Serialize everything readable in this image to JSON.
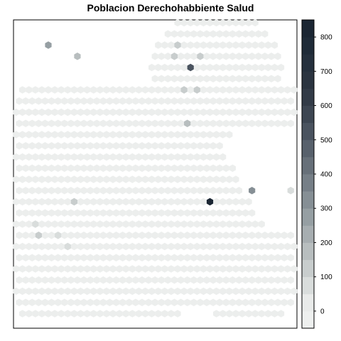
{
  "chart_data": {
    "type": "heatmap",
    "title": "Poblacion Derechohabbiente Salud",
    "legend": {
      "position": "right",
      "ticks": [
        0,
        100,
        200,
        300,
        400,
        500,
        600,
        700,
        800
      ],
      "range": [
        -50,
        850
      ],
      "bins": [
        {
          "from": -50,
          "to": 0,
          "color": "#eef0ef"
        },
        {
          "from": 0,
          "to": 50,
          "color": "#e9ebea"
        },
        {
          "from": 50,
          "to": 100,
          "color": "#d9dddc"
        },
        {
          "from": 100,
          "to": 150,
          "color": "#c8cdcd"
        },
        {
          "from": 150,
          "to": 200,
          "color": "#b8bebf"
        },
        {
          "from": 200,
          "to": 250,
          "color": "#a7aeb1"
        },
        {
          "from": 250,
          "to": 300,
          "color": "#969fa3"
        },
        {
          "from": 300,
          "to": 350,
          "color": "#868f95"
        },
        {
          "from": 350,
          "to": 400,
          "color": "#767f87"
        },
        {
          "from": 400,
          "to": 450,
          "color": "#677079"
        },
        {
          "from": 450,
          "to": 500,
          "color": "#58616c"
        },
        {
          "from": 500,
          "to": 550,
          "color": "#4a535f"
        },
        {
          "from": 550,
          "to": 600,
          "color": "#3d4652"
        },
        {
          "from": 600,
          "to": 650,
          "color": "#323b47"
        },
        {
          "from": 650,
          "to": 700,
          "color": "#2b3440"
        },
        {
          "from": 700,
          "to": 750,
          "color": "#25303d"
        },
        {
          "from": 750,
          "to": 800,
          "color": "#1f2b38"
        },
        {
          "from": 800,
          "to": 850,
          "color": "#1b2633"
        }
      ]
    },
    "base_color": "#eceeed",
    "highlight_hexes": [
      {
        "col": 5,
        "row": 2,
        "value": 280
      },
      {
        "col": 9,
        "row": 3,
        "value": 160
      },
      {
        "col": 25,
        "row": 2,
        "value": 110
      },
      {
        "col": 24,
        "row": 3,
        "value": 120
      },
      {
        "col": 28,
        "row": 3,
        "value": 100
      },
      {
        "col": 27,
        "row": 4,
        "value": 500
      },
      {
        "col": 26,
        "row": 6,
        "value": 120
      },
      {
        "col": 28,
        "row": 6,
        "value": 110
      },
      {
        "col": 26,
        "row": 9,
        "value": 150
      },
      {
        "col": 36,
        "row": 15,
        "value": 330
      },
      {
        "col": 42,
        "row": 15,
        "value": 80
      },
      {
        "col": 30,
        "row": 16,
        "value": 830
      },
      {
        "col": 9,
        "row": 16,
        "value": 140
      },
      {
        "col": 3,
        "row": 18,
        "value": 90
      },
      {
        "col": 3,
        "row": 19,
        "value": 100
      },
      {
        "col": 6,
        "row": 19,
        "value": 60
      },
      {
        "col": 8,
        "row": 20,
        "value": 80
      }
    ]
  }
}
